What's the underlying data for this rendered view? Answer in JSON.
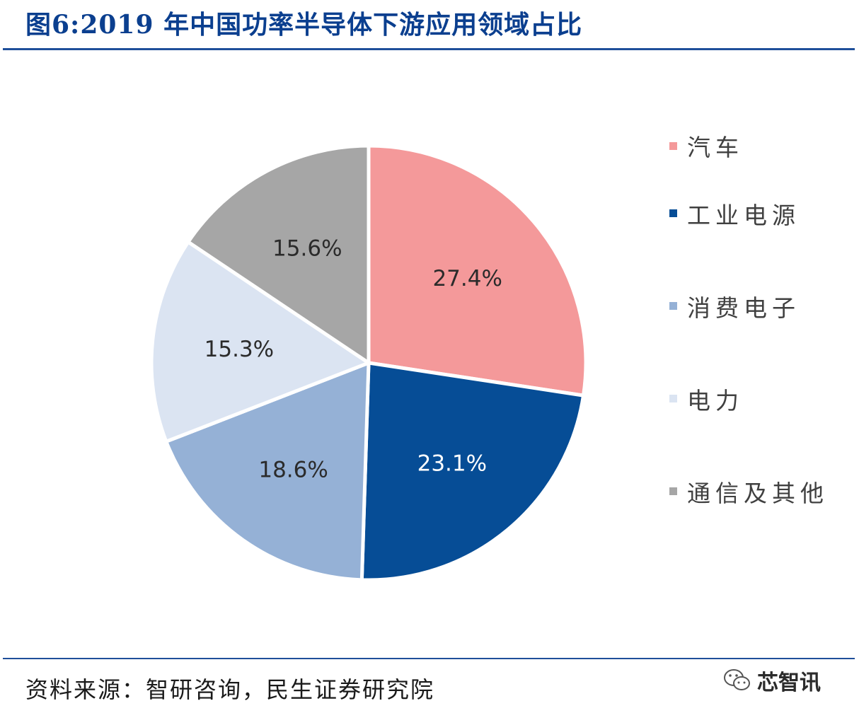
{
  "title": "图6:2019 年中国功率半导体下游应用领域占比",
  "source": "资料来源：智研咨询，民生证券研究院",
  "watermark": {
    "text": "芯智讯",
    "icon": "wechat-icon"
  },
  "chart_data": {
    "type": "pie",
    "title": "图6:2019 年中国功率半导体下游应用领域占比",
    "legend_position": "right",
    "slices": [
      {
        "name": "汽车",
        "value": 27.4,
        "label": "27.4%",
        "color": "#f4999a",
        "label_color": "#2b2b2b"
      },
      {
        "name": "工业电源",
        "value": 23.1,
        "label": "23.1%",
        "color": "#064d96",
        "label_color": "#ffffff"
      },
      {
        "name": "消费电子",
        "value": 18.6,
        "label": "18.6%",
        "color": "#95b1d6",
        "label_color": "#2b2b2b"
      },
      {
        "name": "电力",
        "value": 15.3,
        "label": "15.3%",
        "color": "#dbe4f2",
        "label_color": "#2b2b2b"
      },
      {
        "name": "通信及其他",
        "value": 15.6,
        "label": "15.6%",
        "color": "#a6a6a6",
        "label_color": "#2b2b2b"
      }
    ]
  }
}
